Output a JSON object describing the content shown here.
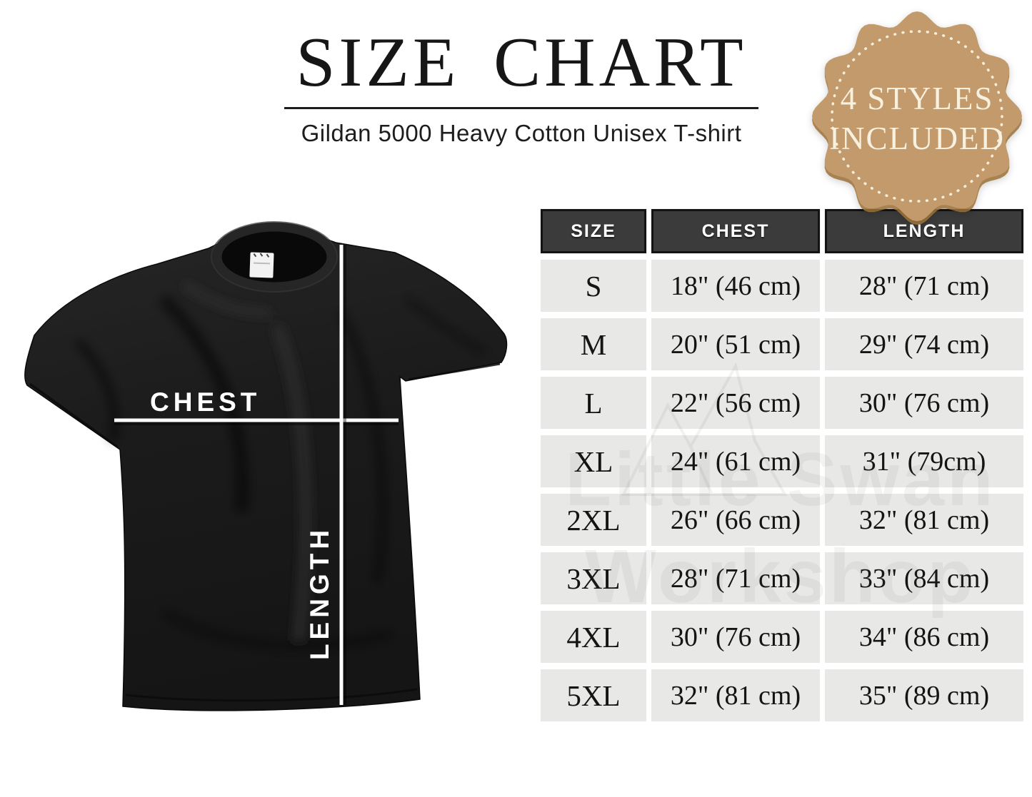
{
  "header": {
    "title": "SIZE CHART",
    "subtitle": "Gildan 5000 Heavy Cotton Unisex T-shirt"
  },
  "badge": {
    "line1": "4 STYLES",
    "line2": "INCLUDED",
    "bg_color": "#c29a6c",
    "text_color": "#f8f1df",
    "dot_color": "#f6eed8"
  },
  "tshirt": {
    "chest_label": "CHEST",
    "length_label": "LENGTH",
    "shirt_color": "#1a1a1a",
    "line_color": "#ffffff"
  },
  "table": {
    "columns": [
      "SIZE",
      "CHEST",
      "LENGTH"
    ],
    "header_bg": "#3b3b3b",
    "cell_bg": "#e8e8e6",
    "rows": [
      {
        "size": "S",
        "chest": "18\" (46 cm)",
        "length": "28\" (71 cm)"
      },
      {
        "size": "M",
        "chest": "20\" (51 cm)",
        "length": "29\" (74 cm)"
      },
      {
        "size": "L",
        "chest": "22\" (56 cm)",
        "length": "30\" (76 cm)"
      },
      {
        "size": "XL",
        "chest": "24\" (61 cm)",
        "length": "31\" (79cm)"
      },
      {
        "size": "2XL",
        "chest": "26\" (66 cm)",
        "length": "32\" (81 cm)"
      },
      {
        "size": "3XL",
        "chest": "28\" (71 cm)",
        "length": "33\" (84 cm)"
      },
      {
        "size": "4XL",
        "chest": "30\" (76 cm)",
        "length": "34\" (86 cm)"
      },
      {
        "size": "5XL",
        "chest": "32\" (81 cm)",
        "length": "35\" (89 cm)"
      }
    ]
  },
  "watermark": {
    "line1": "Little Swan",
    "line2": "Workshop"
  }
}
